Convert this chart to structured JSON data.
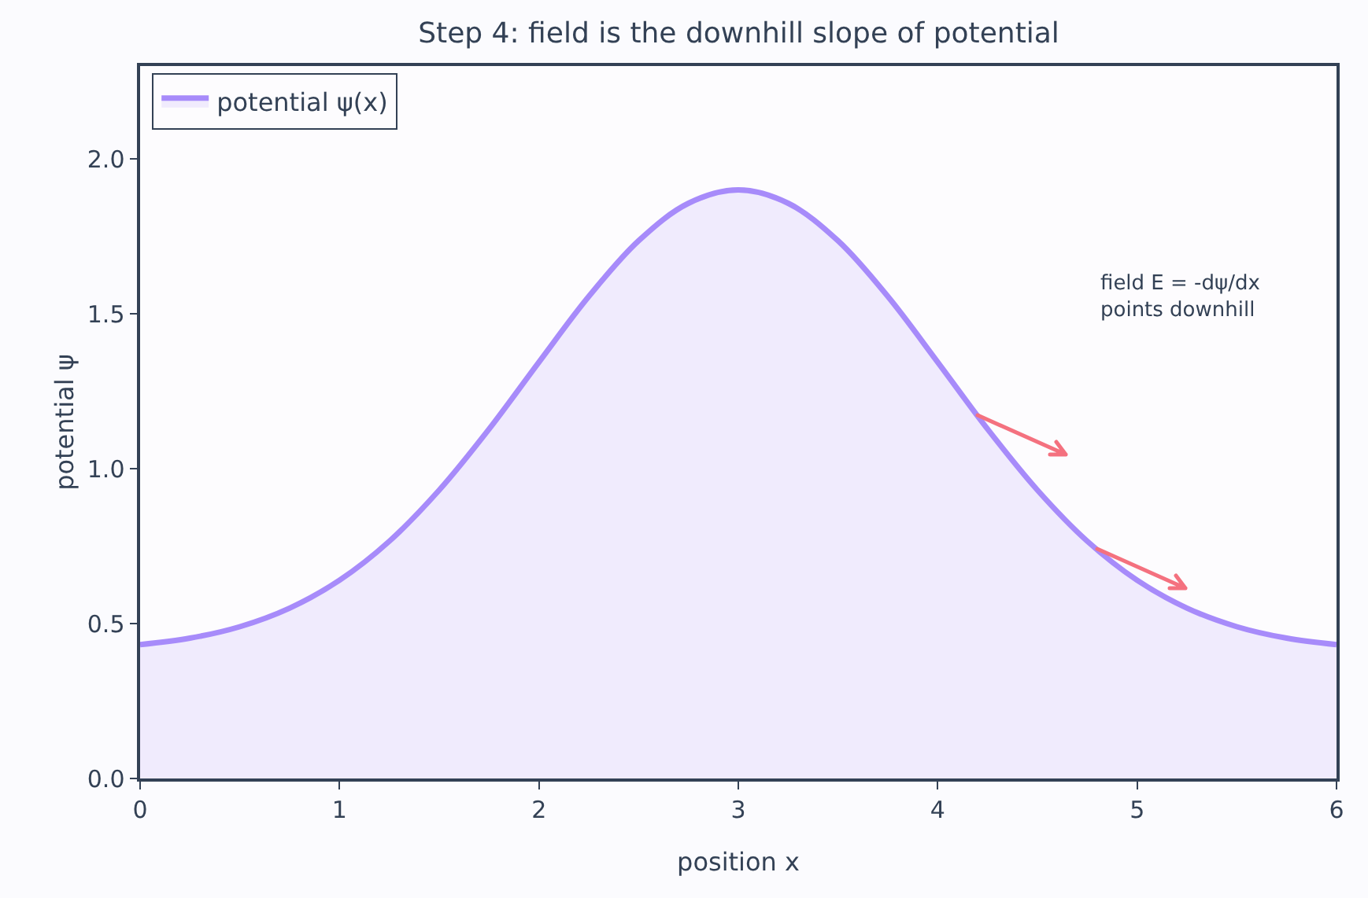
{
  "chart_data": {
    "type": "area",
    "title": "Step 4: field is the downhill slope of potential",
    "xlabel": "position x",
    "ylabel": "potential ψ",
    "x": [
      0,
      0.25,
      0.5,
      0.75,
      1,
      1.25,
      1.5,
      1.75,
      2,
      2.25,
      2.5,
      2.75,
      3,
      3.25,
      3.5,
      3.75,
      4,
      4.25,
      4.5,
      4.75,
      5,
      5.25,
      5.5,
      5.75,
      6
    ],
    "series": [
      {
        "name": "potential ψ(x)",
        "color": "#a78bfa",
        "values": [
          0.432,
          0.453,
          0.49,
          0.55,
          0.64,
          0.766,
          0.931,
          1.128,
          1.344,
          1.556,
          1.736,
          1.857,
          1.9,
          1.857,
          1.736,
          1.556,
          1.344,
          1.128,
          0.931,
          0.766,
          0.64,
          0.55,
          0.49,
          0.453,
          0.432
        ]
      }
    ],
    "xlim": [
      0,
      6
    ],
    "xticks": [
      0,
      1,
      2,
      3,
      4,
      5,
      6
    ],
    "ylim": [
      0,
      2.3
    ],
    "yticks": [
      {
        "value": 0,
        "label": "0.0"
      },
      {
        "value": 0.5,
        "label": "0.5"
      },
      {
        "value": 1,
        "label": "1.0"
      },
      {
        "value": 1.5,
        "label": "1.5"
      },
      {
        "value": 2,
        "label": "2.0"
      }
    ],
    "grid": false,
    "legend": "top left",
    "marker": "none",
    "line_style": "solid",
    "annotations": [
      "field E = -dψ/dx\npoints downhill"
    ]
  }
}
